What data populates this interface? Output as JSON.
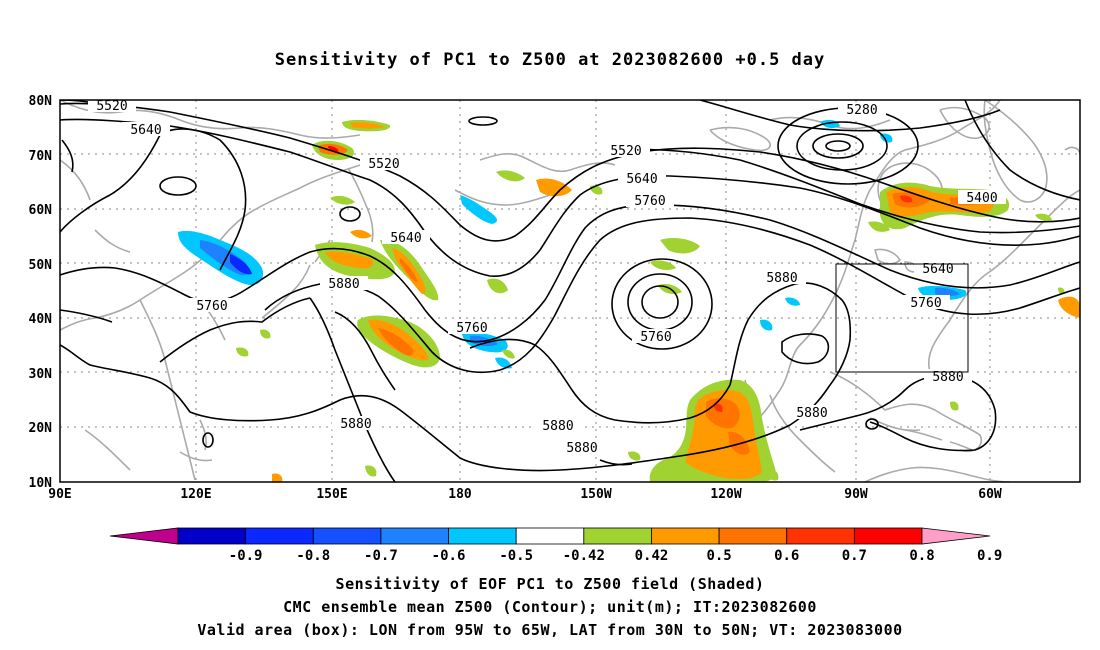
{
  "title": "Sensitivity of PC1 to Z500 at 2023082600 +0.5 day",
  "map": {
    "lat_ticks": [
      "10N",
      "20N",
      "30N",
      "40N",
      "50N",
      "60N",
      "70N",
      "80N"
    ],
    "lon_ticks": [
      "90E",
      "120E",
      "150E",
      "180",
      "150W",
      "120W",
      "90W",
      "60W"
    ],
    "lat_range": [
      10,
      80
    ],
    "lon_range_deg_east": [
      90,
      315
    ],
    "grid": "dotted",
    "valid_box": {
      "lon": [
        "95W",
        "65W"
      ],
      "lat": [
        "30N",
        "50N"
      ]
    },
    "contour_labels": [
      "5520",
      "5640",
      "5520",
      "5640",
      "5760",
      "5880",
      "5760",
      "5520",
      "5640",
      "5760",
      "5280",
      "5400",
      "5760",
      "5880",
      "5640",
      "5760",
      "5880",
      "5880",
      "5880",
      "5880",
      "5880"
    ]
  },
  "colorbar": {
    "labels": [
      "-0.9",
      "-0.8",
      "-0.7",
      "-0.6",
      "-0.5",
      "-0.42",
      "0.42",
      "0.5",
      "0.6",
      "0.7",
      "0.8",
      "0.9"
    ],
    "colors": [
      "#c0008c",
      "#0000c8",
      "#0a28ff",
      "#1450ff",
      "#1e82ff",
      "#00c8ff",
      "#ffffff",
      "#a0d232",
      "#ff9b00",
      "#ff7300",
      "#ff3200",
      "#ff0000",
      "#ff9ec8"
    ]
  },
  "caption": {
    "line1": "Sensitivity of EOF PC1 to Z500 field (Shaded)",
    "line2": "CMC ensemble mean Z500 (Contour); unit(m); IT:2023082600",
    "line3": "Valid area (box): LON from 95W to 65W, LAT from 30N to 50N; VT: 2023083000"
  }
}
